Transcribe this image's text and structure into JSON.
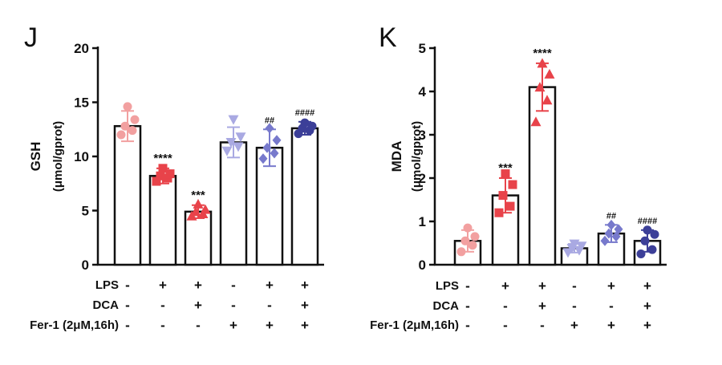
{
  "chart_data": [
    {
      "type": "bar",
      "panel_label": "J",
      "ylabel": "GSH",
      "ylabel_unit": "(μmol/gprot)",
      "ylim": [
        0,
        20
      ],
      "yticks": [
        0,
        5,
        10,
        15,
        20
      ],
      "groups": [
        {
          "value": 12.8,
          "error": 1.4,
          "color": "#f2a0a0",
          "marker": "circle",
          "points": [
            12.0,
            12.4,
            12.8,
            13.4,
            14.6
          ],
          "annotation": ""
        },
        {
          "value": 8.2,
          "error": 0.7,
          "color": "#e8434a",
          "marker": "square",
          "points": [
            7.7,
            8.0,
            8.2,
            8.4,
            8.9
          ],
          "annotation": "****"
        },
        {
          "value": 4.9,
          "error": 0.6,
          "color": "#e8434a",
          "marker": "triangle",
          "points": [
            4.5,
            4.7,
            4.9,
            5.1,
            5.6
          ],
          "annotation": "***"
        },
        {
          "value": 11.3,
          "error": 1.4,
          "color": "#a9a9e2",
          "marker": "triangle-down",
          "points": [
            10.5,
            10.9,
            11.3,
            11.8,
            13.4
          ],
          "annotation": ""
        },
        {
          "value": 10.8,
          "error": 1.7,
          "color": "#7779cc",
          "marker": "diamond",
          "points": [
            9.8,
            10.3,
            10.8,
            11.5,
            12.6
          ],
          "annotation": "##"
        },
        {
          "value": 12.6,
          "error": 0.6,
          "color": "#3c3f98",
          "marker": "circle",
          "points": [
            12.1,
            12.4,
            12.6,
            12.8,
            13.1
          ],
          "annotation": "####"
        }
      ],
      "conditions": [
        {
          "label": "LPS",
          "signs": [
            "-",
            "+",
            "+",
            "-",
            "+",
            "+"
          ]
        },
        {
          "label": "DCA",
          "signs": [
            "-",
            "-",
            "+",
            "-",
            "-",
            "+"
          ]
        },
        {
          "label": "Fer-1 (2μM,16h)",
          "signs": [
            "-",
            "-",
            "-",
            "+",
            "+",
            "+"
          ]
        }
      ]
    },
    {
      "type": "bar",
      "panel_label": "K",
      "ylabel": "MDA",
      "ylabel_unit": "(μmol/gprot)",
      "ylim": [
        0,
        5
      ],
      "yticks": [
        0,
        1,
        2,
        3,
        4,
        5
      ],
      "groups": [
        {
          "value": 0.55,
          "error": 0.25,
          "color": "#f2a0a0",
          "marker": "circle",
          "points": [
            0.3,
            0.45,
            0.55,
            0.65,
            0.85
          ],
          "annotation": ""
        },
        {
          "value": 1.6,
          "error": 0.4,
          "color": "#e8434a",
          "marker": "square",
          "points": [
            1.2,
            1.35,
            1.6,
            1.85,
            2.1
          ],
          "annotation": "***"
        },
        {
          "value": 4.1,
          "error": 0.55,
          "color": "#e8434a",
          "marker": "triangle",
          "points": [
            3.3,
            3.8,
            4.1,
            4.4,
            4.65
          ],
          "annotation": "****"
        },
        {
          "value": 0.38,
          "error": 0.1,
          "color": "#a9a9e2",
          "marker": "triangle-down",
          "points": [
            0.28,
            0.33,
            0.38,
            0.43,
            0.48
          ],
          "annotation": ""
        },
        {
          "value": 0.72,
          "error": 0.2,
          "color": "#7779cc",
          "marker": "diamond",
          "points": [
            0.55,
            0.65,
            0.72,
            0.82,
            0.92
          ],
          "annotation": "##"
        },
        {
          "value": 0.55,
          "error": 0.25,
          "color": "#3c3f98",
          "marker": "circle",
          "points": [
            0.25,
            0.35,
            0.55,
            0.7,
            0.8
          ],
          "annotation": "####"
        }
      ],
      "conditions": [
        {
          "label": "LPS",
          "signs": [
            "-",
            "+",
            "+",
            "-",
            "+",
            "+"
          ]
        },
        {
          "label": "DCA",
          "signs": [
            "-",
            "-",
            "+",
            "-",
            "-",
            "+"
          ]
        },
        {
          "label": "Fer-1 (2μM,16h)",
          "signs": [
            "-",
            "-",
            "-",
            "+",
            "+",
            "+"
          ]
        }
      ]
    }
  ]
}
